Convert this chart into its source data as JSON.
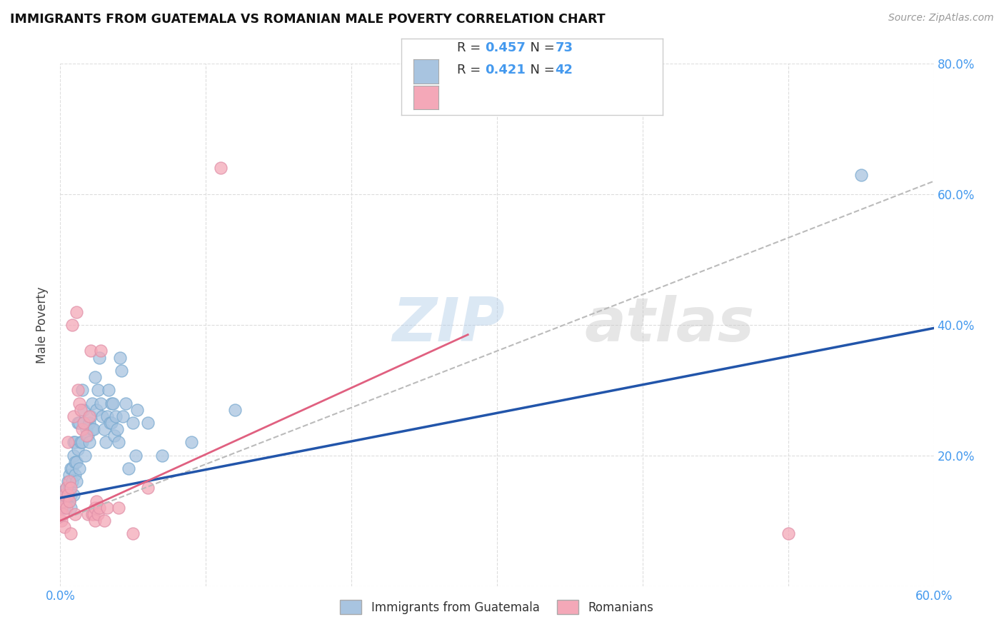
{
  "title": "IMMIGRANTS FROM GUATEMALA VS ROMANIAN MALE POVERTY CORRELATION CHART",
  "source": "Source: ZipAtlas.com",
  "ylabel": "Male Poverty",
  "xlim": [
    0.0,
    0.6
  ],
  "ylim": [
    0.0,
    0.8
  ],
  "blue_R": 0.457,
  "blue_N": 73,
  "pink_R": 0.421,
  "pink_N": 42,
  "blue_color": "#a8c4e0",
  "pink_color": "#f4a8b8",
  "blue_line_color": "#2255aa",
  "pink_line_color": "#e06080",
  "gray_dash_color": "#bbbbbb",
  "watermark": "ZIPatlas",
  "blue_scatter": [
    [
      0.001,
      0.125
    ],
    [
      0.002,
      0.13
    ],
    [
      0.002,
      0.145
    ],
    [
      0.003,
      0.14
    ],
    [
      0.003,
      0.12
    ],
    [
      0.004,
      0.15
    ],
    [
      0.004,
      0.13
    ],
    [
      0.005,
      0.14
    ],
    [
      0.005,
      0.16
    ],
    [
      0.006,
      0.13
    ],
    [
      0.006,
      0.15
    ],
    [
      0.006,
      0.17
    ],
    [
      0.007,
      0.14
    ],
    [
      0.007,
      0.12
    ],
    [
      0.007,
      0.18
    ],
    [
      0.008,
      0.16
    ],
    [
      0.008,
      0.18
    ],
    [
      0.009,
      0.14
    ],
    [
      0.009,
      0.2
    ],
    [
      0.009,
      0.22
    ],
    [
      0.01,
      0.17
    ],
    [
      0.01,
      0.22
    ],
    [
      0.01,
      0.19
    ],
    [
      0.011,
      0.19
    ],
    [
      0.011,
      0.16
    ],
    [
      0.012,
      0.21
    ],
    [
      0.012,
      0.25
    ],
    [
      0.013,
      0.18
    ],
    [
      0.013,
      0.25
    ],
    [
      0.014,
      0.22
    ],
    [
      0.015,
      0.22
    ],
    [
      0.015,
      0.3
    ],
    [
      0.016,
      0.27
    ],
    [
      0.017,
      0.2
    ],
    [
      0.018,
      0.24
    ],
    [
      0.019,
      0.23
    ],
    [
      0.02,
      0.25
    ],
    [
      0.02,
      0.22
    ],
    [
      0.021,
      0.26
    ],
    [
      0.022,
      0.28
    ],
    [
      0.022,
      0.24
    ],
    [
      0.023,
      0.24
    ],
    [
      0.024,
      0.32
    ],
    [
      0.025,
      0.27
    ],
    [
      0.026,
      0.3
    ],
    [
      0.027,
      0.35
    ],
    [
      0.028,
      0.28
    ],
    [
      0.029,
      0.26
    ],
    [
      0.03,
      0.24
    ],
    [
      0.031,
      0.22
    ],
    [
      0.032,
      0.26
    ],
    [
      0.033,
      0.3
    ],
    [
      0.034,
      0.25
    ],
    [
      0.035,
      0.25
    ],
    [
      0.035,
      0.28
    ],
    [
      0.036,
      0.28
    ],
    [
      0.037,
      0.23
    ],
    [
      0.038,
      0.26
    ],
    [
      0.039,
      0.24
    ],
    [
      0.04,
      0.22
    ],
    [
      0.041,
      0.35
    ],
    [
      0.042,
      0.33
    ],
    [
      0.043,
      0.26
    ],
    [
      0.045,
      0.28
    ],
    [
      0.047,
      0.18
    ],
    [
      0.05,
      0.25
    ],
    [
      0.052,
      0.2
    ],
    [
      0.053,
      0.27
    ],
    [
      0.06,
      0.25
    ],
    [
      0.07,
      0.2
    ],
    [
      0.09,
      0.22
    ],
    [
      0.12,
      0.27
    ],
    [
      0.55,
      0.63
    ]
  ],
  "pink_scatter": [
    [
      0.001,
      0.1
    ],
    [
      0.001,
      0.12
    ],
    [
      0.002,
      0.13
    ],
    [
      0.002,
      0.11
    ],
    [
      0.003,
      0.14
    ],
    [
      0.003,
      0.09
    ],
    [
      0.004,
      0.12
    ],
    [
      0.004,
      0.15
    ],
    [
      0.005,
      0.22
    ],
    [
      0.005,
      0.14
    ],
    [
      0.006,
      0.16
    ],
    [
      0.006,
      0.13
    ],
    [
      0.007,
      0.15
    ],
    [
      0.007,
      0.08
    ],
    [
      0.008,
      0.4
    ],
    [
      0.009,
      0.26
    ],
    [
      0.01,
      0.11
    ],
    [
      0.011,
      0.42
    ],
    [
      0.012,
      0.3
    ],
    [
      0.013,
      0.28
    ],
    [
      0.014,
      0.27
    ],
    [
      0.015,
      0.24
    ],
    [
      0.016,
      0.25
    ],
    [
      0.018,
      0.23
    ],
    [
      0.019,
      0.11
    ],
    [
      0.02,
      0.26
    ],
    [
      0.021,
      0.36
    ],
    [
      0.022,
      0.11
    ],
    [
      0.023,
      0.11
    ],
    [
      0.024,
      0.1
    ],
    [
      0.024,
      0.12
    ],
    [
      0.025,
      0.13
    ],
    [
      0.026,
      0.11
    ],
    [
      0.027,
      0.12
    ],
    [
      0.028,
      0.36
    ],
    [
      0.03,
      0.1
    ],
    [
      0.032,
      0.12
    ],
    [
      0.04,
      0.12
    ],
    [
      0.05,
      0.08
    ],
    [
      0.06,
      0.15
    ],
    [
      0.11,
      0.64
    ],
    [
      0.5,
      0.08
    ]
  ],
  "blue_line": [
    [
      0.0,
      0.135
    ],
    [
      0.6,
      0.395
    ]
  ],
  "pink_solid_line": [
    [
      0.0,
      0.1
    ],
    [
      0.28,
      0.385
    ]
  ],
  "pink_dash_line": [
    [
      0.0,
      0.1
    ],
    [
      0.6,
      0.62
    ]
  ]
}
